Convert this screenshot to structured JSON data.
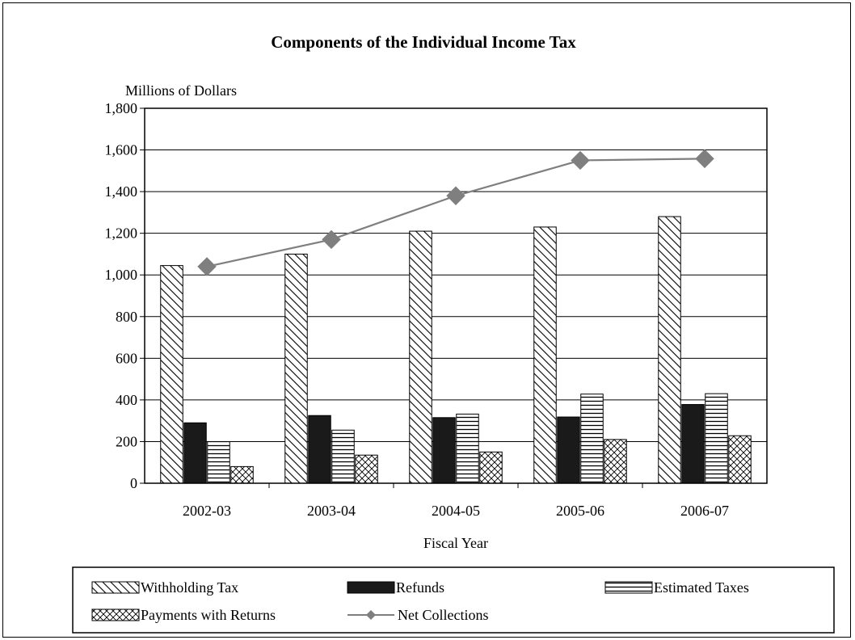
{
  "chart_data": {
    "type": "bar",
    "title": "Components of the Individual Income Tax",
    "ylabel": "Millions of Dollars",
    "xlabel": "Fiscal Year",
    "ylim": [
      0,
      1800
    ],
    "ytick_step": 200,
    "grid": true,
    "legend_position": "bottom",
    "categories": [
      "2002-03",
      "2003-04",
      "2004-05",
      "2005-06",
      "2006-07"
    ],
    "series": [
      {
        "name": "Withholding Tax",
        "kind": "bar",
        "pattern": "diagonal-hatch",
        "values": [
          1045,
          1100,
          1210,
          1230,
          1280
        ]
      },
      {
        "name": "Refunds",
        "kind": "bar",
        "pattern": "solid-black",
        "values": [
          290,
          325,
          315,
          318,
          378
        ]
      },
      {
        "name": "Estimated Taxes",
        "kind": "bar",
        "pattern": "horizontal-lines",
        "values": [
          200,
          255,
          332,
          428,
          430
        ]
      },
      {
        "name": "Payments with Returns",
        "kind": "bar",
        "pattern": "crosshatch",
        "values": [
          80,
          135,
          150,
          210,
          228
        ]
      },
      {
        "name": "Net Collections",
        "kind": "line",
        "marker": "diamond",
        "color": "#7f7f7f",
        "values": [
          1040,
          1170,
          1380,
          1550,
          1558
        ]
      }
    ]
  }
}
